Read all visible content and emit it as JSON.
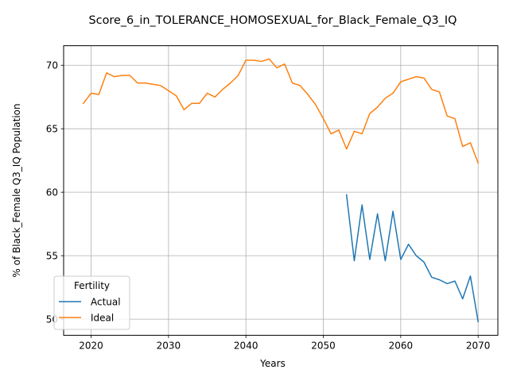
{
  "chart_data": {
    "type": "line",
    "title": "Score_6_in_TOLERANCE_HOMOSEXUAL_for_Black_Female_Q3_IQ",
    "xlabel": "Years",
    "ylabel": "% of Black_Female Q3_IQ Population",
    "xlim": [
      2016.45,
      2072.55
    ],
    "ylim": [
      48.73,
      71.54
    ],
    "xticks": [
      2020,
      2030,
      2040,
      2050,
      2060,
      2070
    ],
    "yticks": [
      50,
      55,
      60,
      65,
      70
    ],
    "grid": true,
    "legend": {
      "title": "Fertility",
      "placement": "lower-left"
    },
    "series": [
      {
        "name": "Actual",
        "color": "#1f77b4",
        "x": [
          2053,
          2054,
          2055,
          2056,
          2057,
          2058,
          2059,
          2060,
          2061,
          2062,
          2063,
          2064,
          2065,
          2066,
          2067,
          2068,
          2069,
          2070
        ],
        "y": [
          59.8,
          54.6,
          59.0,
          54.7,
          58.3,
          54.6,
          58.5,
          54.7,
          55.9,
          55.0,
          54.5,
          53.3,
          53.1,
          52.8,
          53.0,
          51.6,
          53.4,
          49.8
        ]
      },
      {
        "name": "Ideal",
        "color": "#ff7f0e",
        "x": [
          2019,
          2020,
          2021,
          2022,
          2023,
          2024,
          2025,
          2026,
          2027,
          2028,
          2029,
          2030,
          2031,
          2032,
          2033,
          2034,
          2035,
          2036,
          2037,
          2038,
          2039,
          2040,
          2041,
          2042,
          2043,
          2044,
          2045,
          2046,
          2047,
          2048,
          2049,
          2050,
          2051,
          2052,
          2053,
          2054,
          2055,
          2056,
          2057,
          2058,
          2059,
          2060,
          2061,
          2062,
          2063,
          2064,
          2065,
          2066,
          2067,
          2068,
          2069,
          2070
        ],
        "y": [
          67.0,
          67.8,
          67.7,
          69.4,
          69.1,
          69.2,
          69.2,
          68.6,
          68.6,
          68.5,
          68.4,
          68.0,
          67.6,
          66.5,
          67.0,
          67.0,
          67.8,
          67.5,
          68.1,
          68.6,
          69.2,
          70.4,
          70.4,
          70.3,
          70.5,
          69.8,
          70.1,
          68.6,
          68.4,
          67.7,
          66.9,
          65.8,
          64.6,
          64.9,
          63.4,
          64.8,
          64.6,
          66.2,
          66.7,
          67.4,
          67.8,
          68.7,
          68.9,
          69.1,
          69.0,
          68.1,
          67.9,
          66.0,
          65.8,
          63.6,
          63.9,
          62.3
        ]
      }
    ]
  }
}
